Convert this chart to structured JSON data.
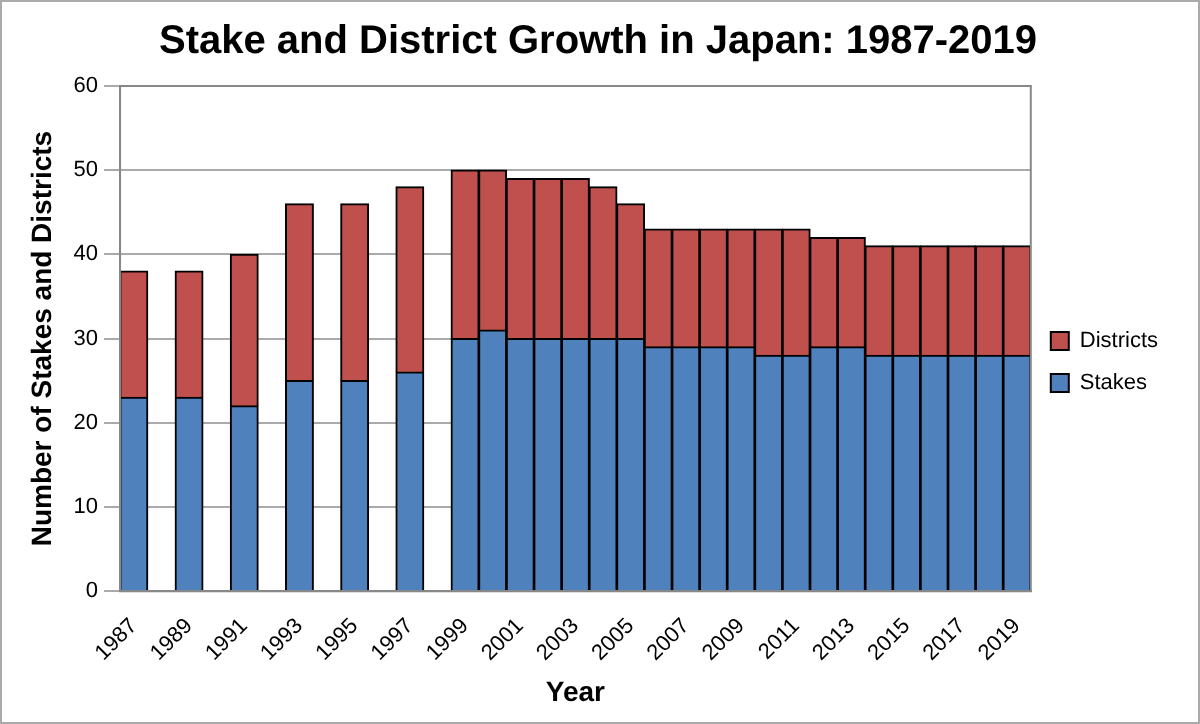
{
  "chart_data": {
    "type": "bar",
    "title": "Stake and District Growth in Japan: 1987-2019",
    "xlabel": "Year",
    "ylabel": "Number of Stakes and Districts",
    "categories": [
      "1987",
      null,
      "1989",
      null,
      "1991",
      null,
      "1993",
      null,
      "1995",
      null,
      "1997",
      null,
      "1999",
      null,
      "2001",
      null,
      "2003",
      null,
      "2005",
      null,
      "2007",
      null,
      "2009",
      null,
      "2011",
      null,
      "2013",
      null,
      "2015",
      null,
      "2017",
      null,
      "2019"
    ],
    "series": [
      {
        "name": "Stakes",
        "color": "#4f81bd",
        "values": [
          23,
          null,
          23,
          null,
          22,
          null,
          25,
          null,
          25,
          null,
          26,
          null,
          30,
          31,
          30,
          30,
          30,
          30,
          30,
          29,
          29,
          29,
          29,
          28,
          28,
          29,
          29,
          28,
          28,
          28,
          28,
          28,
          28
        ]
      },
      {
        "name": "Districts",
        "color": "#c0504d",
        "values": [
          15,
          null,
          15,
          null,
          18,
          null,
          21,
          null,
          21,
          null,
          22,
          null,
          20,
          19,
          19,
          19,
          19,
          18,
          16,
          14,
          14,
          14,
          14,
          15,
          15,
          13,
          13,
          13,
          13,
          13,
          13,
          13,
          13
        ]
      }
    ],
    "stacked": true,
    "ylim": [
      0,
      60
    ],
    "yticks": [
      0,
      10,
      20,
      30,
      40,
      50,
      60
    ],
    "grid": "y",
    "legend": "right"
  }
}
